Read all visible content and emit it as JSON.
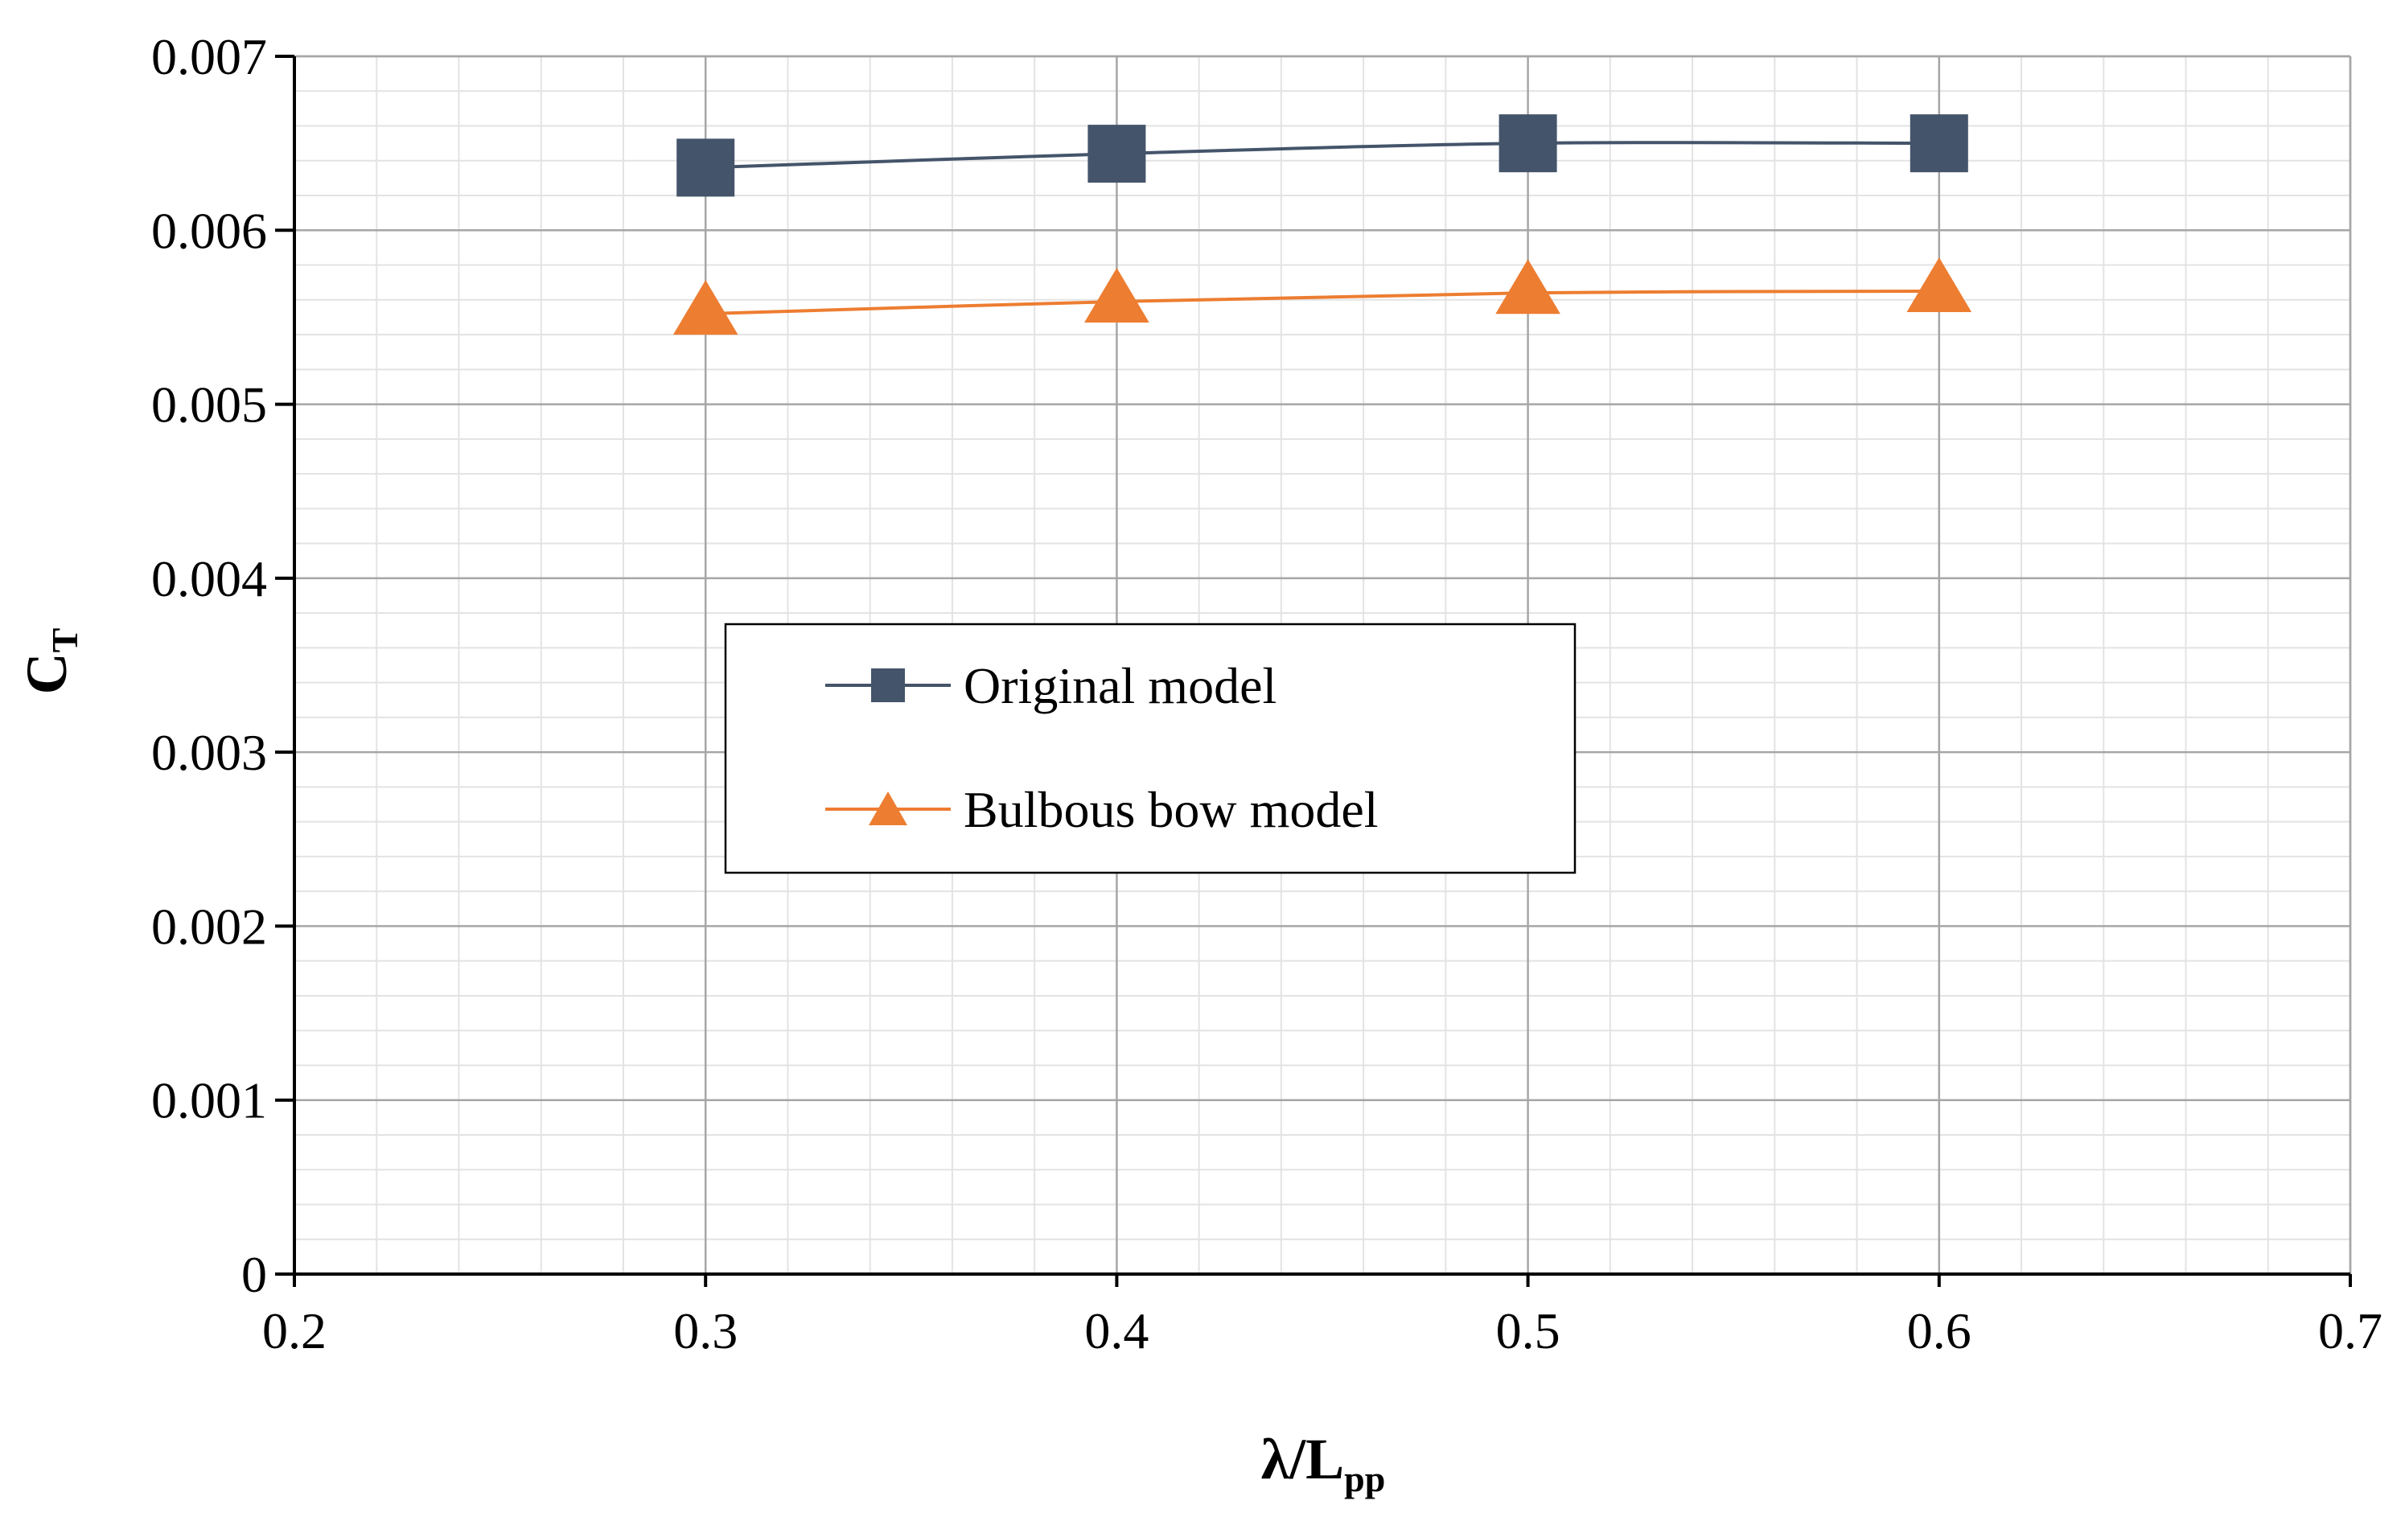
{
  "chart_data": {
    "type": "line",
    "title": "",
    "xlabel": {
      "main": "λ/L",
      "sub": "pp"
    },
    "ylabel": {
      "main": "C",
      "sub": "T"
    },
    "xlim": [
      0.2,
      0.7
    ],
    "ylim": [
      0,
      0.007
    ],
    "x_ticks": [
      "0.2",
      "0.3",
      "0.4",
      "0.5",
      "0.6",
      "0.7"
    ],
    "y_ticks": [
      "0",
      "0.001",
      "0.002",
      "0.003",
      "0.004",
      "0.005",
      "0.006",
      "0.007"
    ],
    "grid": true,
    "minor_grid": true,
    "legend_position": "center-left",
    "series": [
      {
        "name": "Original model",
        "marker": "square",
        "color": "#44546A",
        "x": [
          0.3,
          0.4,
          0.5,
          0.6
        ],
        "y": [
          0.00636,
          0.00644,
          0.0065,
          0.0065
        ]
      },
      {
        "name": "Bulbous bow model",
        "marker": "triangle",
        "color": "#ED7D31",
        "x": [
          0.3,
          0.4,
          0.5,
          0.6
        ],
        "y": [
          0.00552,
          0.00559,
          0.00564,
          0.00565
        ]
      }
    ]
  }
}
